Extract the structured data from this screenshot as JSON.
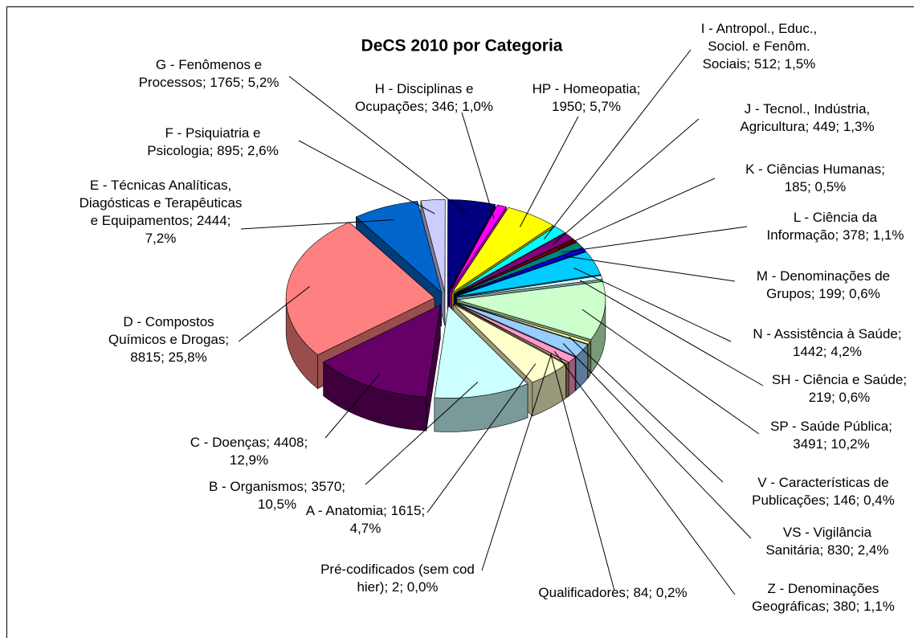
{
  "chart_data": {
    "type": "pie3d",
    "title": "DeCS 2010 por Categoria",
    "values": [
      1615,
      3570,
      4408,
      8815,
      2444,
      895,
      1765,
      346,
      1950,
      512,
      449,
      185,
      378,
      199,
      1442,
      219,
      3491,
      146,
      830,
      380,
      2,
      84
    ],
    "value_labels": [
      "A - Anatomia; 1615; 4,7%",
      "B - Organismos; 3570; 10,5%",
      "C - Doenças; 4408; 12,9%",
      "D - Compostos Químicos e Drogas; 8815; 25,8%",
      "E - Técnicas Analíticas, Diagósticas e Terapêuticas e Equipamentos; 2444; 7,2%",
      "F - Psiquiatria e Psicologia; 895; 2,6%",
      "G - Fenômenos e Processos; 1765; 5,2%",
      "H - Disciplinas e Ocupações; 346; 1,0%",
      "HP - Homeopatia; 1950; 5,7%",
      "I - Antropol., Educ., Sociol. e Fenôm. Sociais; 512; 1,5%",
      "J - Tecnol., Indústria, Agricultura; 449; 1,3%",
      "K - Ciências Humanas; 185; 0,5%",
      "L - Ciência da Informação; 378; 1,1%",
      "M - Denominações de Grupos; 199; 0,6%",
      "N - Assistência à Saúde; 1442; 4,2%",
      "SH - Ciência e Saúde; 219; 0,6%",
      "SP - Saúde Pública; 3491; 10,2%",
      "V - Características de Publicações; 146; 0,4%",
      "VS - Vigilância Sanitária; 830; 2,4%",
      "Z - Denominações Geográficas; 380; 1,1%",
      "Pré-codificados (sem cod hier); 2; 0,0%",
      "Qualificadores; 84; 0,2%"
    ],
    "colors": [
      "#ffffcc",
      "#ccffff",
      "#660066",
      "#ff8080",
      "#0066cc",
      "#ccccff",
      "#000080",
      "#ff00ff",
      "#ffff00",
      "#00ffff",
      "#800080",
      "#800000",
      "#008080",
      "#0000ff",
      "#00ccff",
      "#ccffff",
      "#ccffcc",
      "#ffff99",
      "#99ccff",
      "#ff99cc",
      "#cc99ff",
      "#ffcc99"
    ]
  }
}
